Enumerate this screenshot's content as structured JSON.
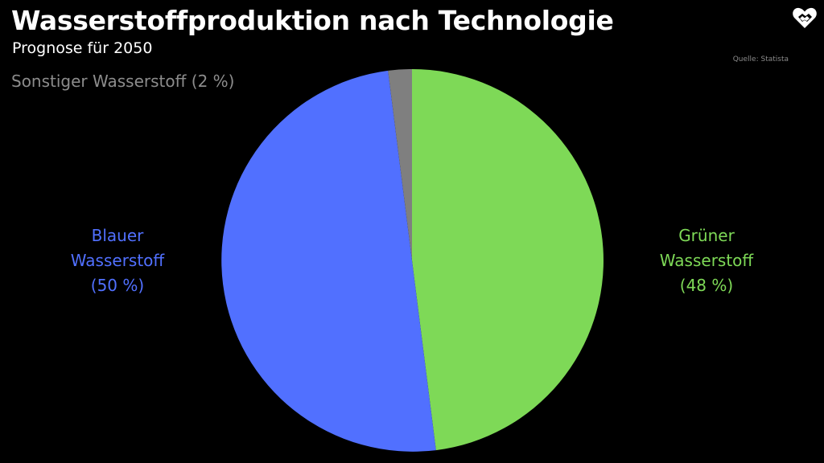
{
  "chart_data": {
    "type": "pie",
    "title": "Wasserstoffproduktion nach Technologie",
    "subtitle": "Prognose für 2050",
    "source": "Quelle: Statista",
    "slices": [
      {
        "key": "gruen",
        "value": 48,
        "color": "#7ed957",
        "label_lines": [
          "Grüner",
          "Wasserstoff",
          "(48 %)"
        ]
      },
      {
        "key": "blau",
        "value": 50,
        "color": "#5170ff",
        "label_lines": [
          "Blauer",
          "Wasserstoff",
          "(50 %)"
        ]
      },
      {
        "key": "sonstig",
        "value": 2,
        "color": "#7f7f7f",
        "label_lines": [
          "Sonstiger Wasserstoff (2 %)"
        ]
      }
    ],
    "start_angle": "12 o'clock",
    "direction": "clockwise",
    "legend": "none"
  },
  "logo": {
    "icon": "handshake-heart-icon"
  }
}
